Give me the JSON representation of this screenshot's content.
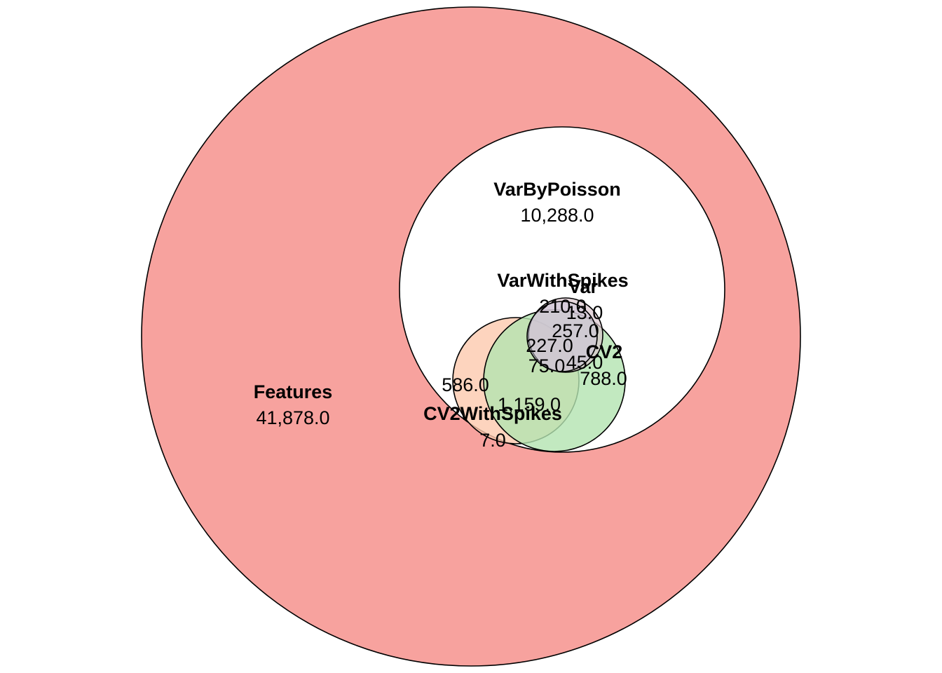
{
  "diagram": {
    "type": "euler",
    "sets": [
      {
        "key": "features",
        "name": "Features",
        "color": "#f7a29e",
        "opacity": 1
      },
      {
        "key": "varbypoisson",
        "name": "VarByPoisson",
        "color": "#ffffff",
        "opacity": 1
      },
      {
        "key": "cv2withspikes",
        "name": "CV2WithSpikes",
        "color": "#fdc9ae",
        "opacity": 0.8
      },
      {
        "key": "cv2",
        "name": "CV2",
        "color": "#b3e4b0",
        "opacity": 0.8
      },
      {
        "key": "var",
        "name": "Var",
        "color": "#dcc6cf",
        "opacity": 0.7
      },
      {
        "key": "varwithspikes",
        "name": "VarWithSpikes",
        "color": "#c9c3d9",
        "opacity": 0.5
      }
    ],
    "counts": [
      {
        "key": "features_only",
        "value": "41,878.0"
      },
      {
        "key": "varbypoisson_only",
        "value": "10,288.0"
      },
      {
        "key": "region_210",
        "value": "210.0"
      },
      {
        "key": "region_13",
        "value": "13.0"
      },
      {
        "key": "region_257",
        "value": "257.0"
      },
      {
        "key": "region_227",
        "value": "227.0"
      },
      {
        "key": "region_75",
        "value": "75.0"
      },
      {
        "key": "region_45",
        "value": "45.0"
      },
      {
        "key": "region_788",
        "value": "788.0"
      },
      {
        "key": "region_586",
        "value": "586.0"
      },
      {
        "key": "region_1159",
        "value": "1,159.0"
      },
      {
        "key": "region_7",
        "value": "7.0"
      }
    ]
  }
}
